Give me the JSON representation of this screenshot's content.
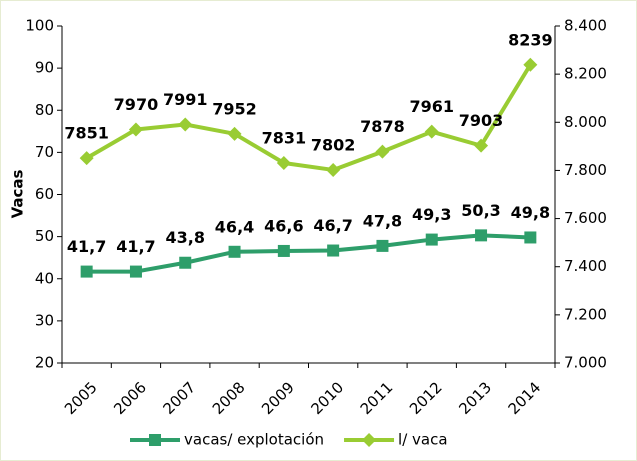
{
  "chart_data": {
    "type": "line",
    "y_label": "Vacas",
    "categories": [
      "2005",
      "2006",
      "2007",
      "2008",
      "2009",
      "2010",
      "2011",
      "2012",
      "2013",
      "2014"
    ],
    "series": [
      {
        "name": "vacas/ explotación",
        "color": "#2e9e6a",
        "marker": "square",
        "values": [
          41.7,
          41.7,
          43.8,
          46.4,
          46.6,
          46.7,
          47.8,
          49.3,
          50.3,
          49.8
        ],
        "value_labels": [
          "41,7",
          "41,7",
          "43,8",
          "46,4",
          "46,6",
          "46,7",
          "47,8",
          "49,3",
          "50,3",
          "49,8"
        ]
      },
      {
        "name": "l/ vaca",
        "color": "#99cc33",
        "marker": "diamond",
        "axis": "y2",
        "values": [
          7851,
          7970,
          7991,
          7952,
          7831,
          7802,
          7878,
          7961,
          7903,
          8239
        ]
      }
    ],
    "ylim": [
      20,
      100
    ],
    "yticks": [
      20,
      30,
      40,
      50,
      60,
      70,
      80,
      90,
      100
    ],
    "y2lim": [
      7000,
      8400
    ],
    "y2ticks": [
      {
        "value": 7000,
        "label": "7.000"
      },
      {
        "value": 7200,
        "label": "7.200"
      },
      {
        "value": 7400,
        "label": "7.400"
      },
      {
        "value": 7600,
        "label": "7.600"
      },
      {
        "value": 7800,
        "label": "7.800"
      },
      {
        "value": 8000,
        "label": "8.000"
      },
      {
        "value": 8200,
        "label": "8.200"
      },
      {
        "value": 8400,
        "label": "8.400"
      }
    ],
    "legend": "bottom"
  }
}
